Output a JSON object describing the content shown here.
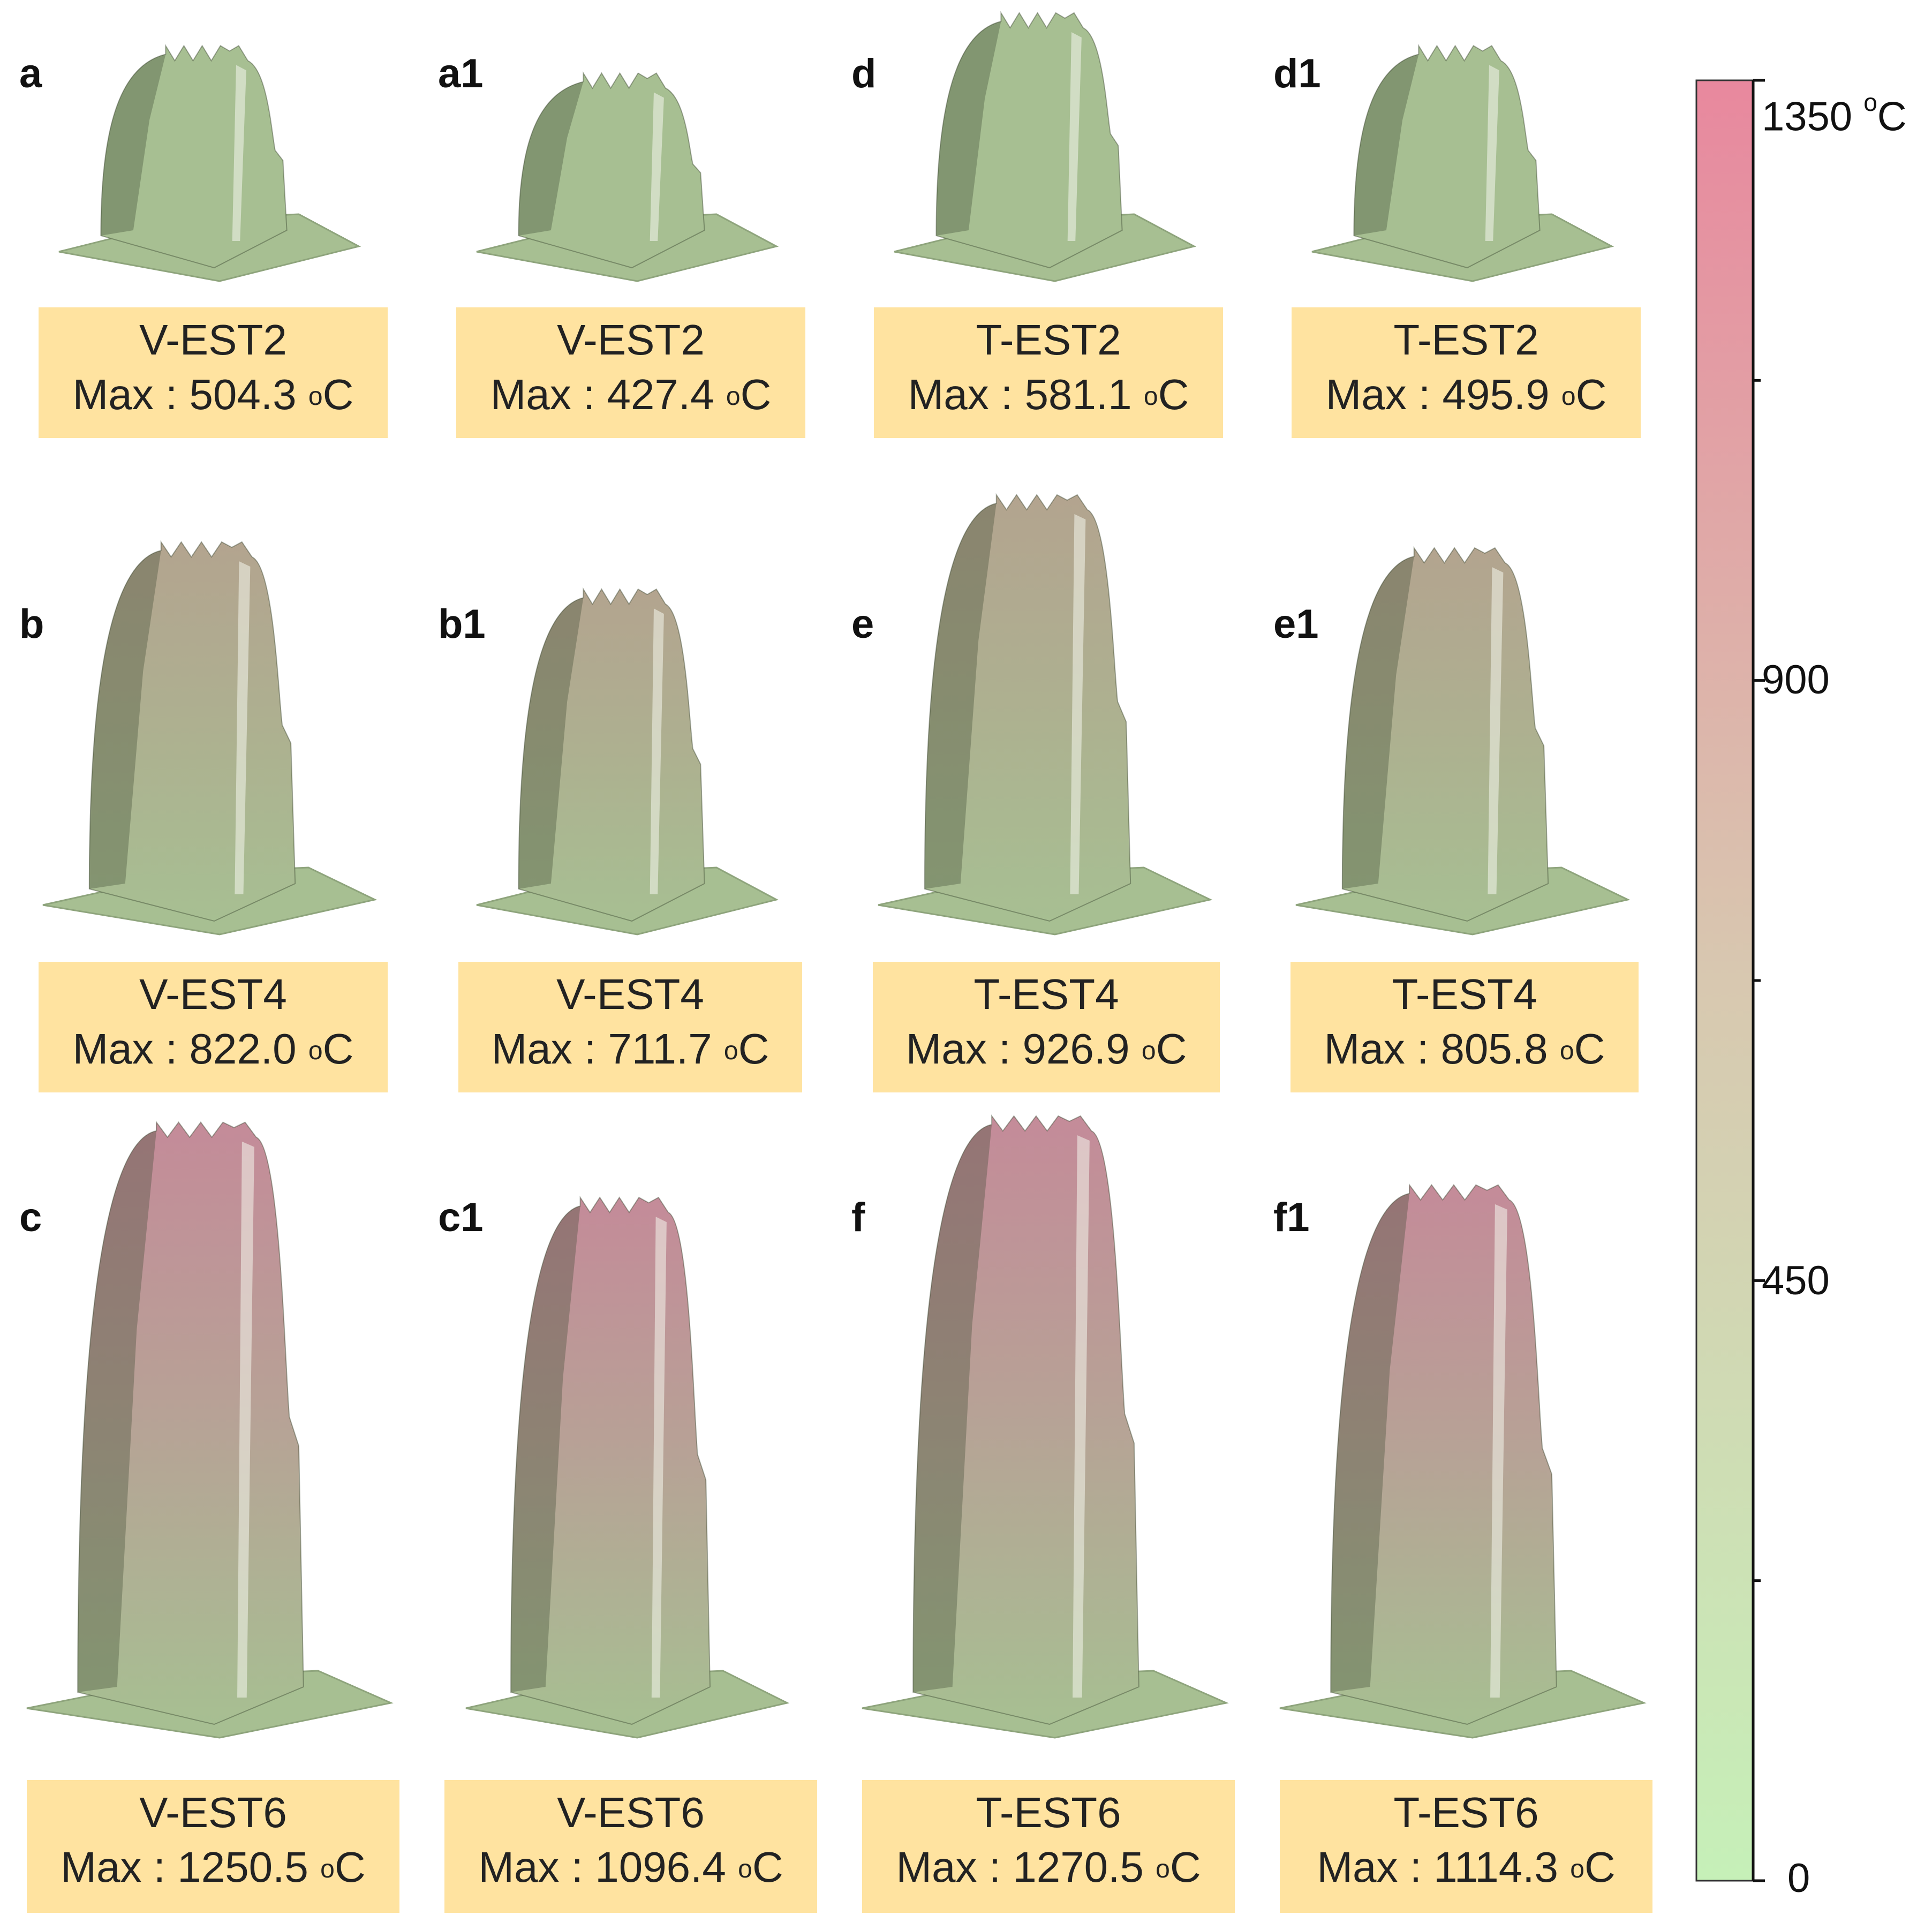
{
  "figure": {
    "panels": [
      {
        "letter": "a",
        "name": "V-EST2",
        "max_value": "504.3",
        "max_prefix": "Max : ",
        "unit_sup": "o",
        "unit": "C",
        "height_frac": 0.37
      },
      {
        "letter": "a1",
        "name": "V-EST2",
        "max_value": "427.4",
        "max_prefix": "Max : ",
        "unit_sup": "o",
        "unit": "C",
        "height_frac": 0.32
      },
      {
        "letter": "d",
        "name": "T-EST2",
        "max_value": "581.1",
        "max_prefix": "Max : ",
        "unit_sup": "o",
        "unit": "C",
        "height_frac": 0.43
      },
      {
        "letter": "d1",
        "name": "T-EST2",
        "max_value": "495.9",
        "max_prefix": "Max : ",
        "unit_sup": "o",
        "unit": "C",
        "height_frac": 0.37
      },
      {
        "letter": "b",
        "name": "V-EST4",
        "max_value": "822.0",
        "max_prefix": "Max : ",
        "unit_sup": "o",
        "unit": "C",
        "height_frac": 0.61
      },
      {
        "letter": "b1",
        "name": "V-EST4",
        "max_value": "711.7",
        "max_prefix": "Max : ",
        "unit_sup": "o",
        "unit": "C",
        "height_frac": 0.53
      },
      {
        "letter": "e",
        "name": "T-EST4",
        "max_value": "926.9",
        "max_prefix": "Max : ",
        "unit_sup": "o",
        "unit": "C",
        "height_frac": 0.69
      },
      {
        "letter": "e1",
        "name": "T-EST4",
        "max_value": "805.8",
        "max_prefix": "Max : ",
        "unit_sup": "o",
        "unit": "C",
        "height_frac": 0.6
      },
      {
        "letter": "c",
        "name": "V-EST6",
        "max_value": "1250.5",
        "max_prefix": "Max : ",
        "unit_sup": "o",
        "unit": "C",
        "height_frac": 0.93
      },
      {
        "letter": "c1",
        "name": "V-EST6",
        "max_value": "1096.4",
        "max_prefix": "Max : ",
        "unit_sup": "o",
        "unit": "C",
        "height_frac": 0.81
      },
      {
        "letter": "f",
        "name": "T-EST6",
        "max_value": "1270.5",
        "max_prefix": "Max : ",
        "unit_sup": "o",
        "unit": "C",
        "height_frac": 0.94
      },
      {
        "letter": "f1",
        "name": "T-EST6",
        "max_value": "1114.3",
        "max_prefix": "Max : ",
        "unit_sup": "o",
        "unit": "C",
        "height_frac": 0.83
      }
    ],
    "colorbar": {
      "min": 0,
      "max": 1350,
      "ticks": [
        {
          "value": 0,
          "label": "0",
          "unit_sup": "",
          "unit": ""
        },
        {
          "value": 450,
          "label": "450",
          "unit_sup": "",
          "unit": ""
        },
        {
          "value": 900,
          "label": "900",
          "unit_sup": "",
          "unit": ""
        },
        {
          "value": 1350,
          "label": "1350 ",
          "unit_sup": "o",
          "unit": "C"
        }
      ],
      "minor_ticks": [
        225,
        675,
        1125
      ],
      "color_low": "#c6f0b8",
      "color_mid": "#d8c8b0",
      "color_high": "#e8889e"
    },
    "surface_colors": {
      "green": "#a7bf92",
      "tan": "#b3a48f",
      "pink": "#c48b99",
      "highlight": "#f4f6ec",
      "shadow": "#3e4a34"
    },
    "caption_bg": "#ffe3a0"
  }
}
